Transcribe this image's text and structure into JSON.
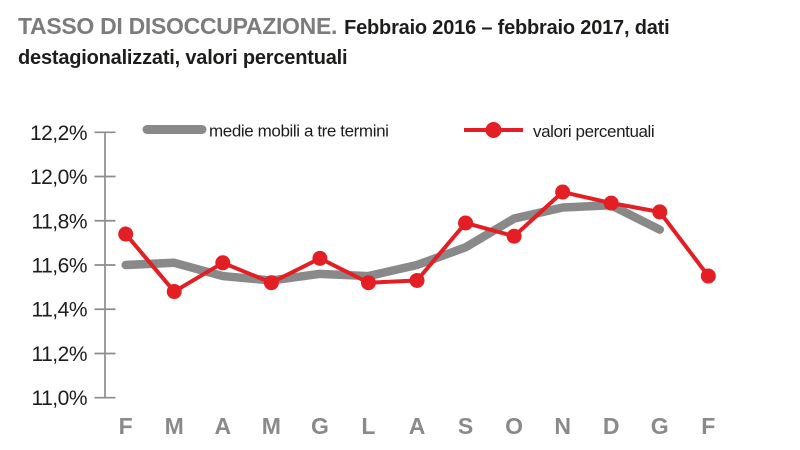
{
  "header": {
    "title_bold": "TASSO DI DISOCCUPAZIONE.",
    "title_rest": "Febbraio 2016 – febbraio 2017, dati destagionalizzati, valori percentuali"
  },
  "colors": {
    "gray_series": "#898989",
    "red_series": "#e31e24",
    "axis_gray": "#8c8c8c",
    "tick_label_color": "#1d1d1b",
    "month_label_gray": "#8a8a8a",
    "title_gray": "#7c7c7c",
    "title_black": "#1d1d1b"
  },
  "chart_data": {
    "type": "line",
    "title": "TASSO DI DISOCCUPAZIONE. Febbraio 2016 – febbraio 2017, dati destagionalizzati, valori percentuali",
    "categories": [
      "F",
      "M",
      "A",
      "M",
      "G",
      "L",
      "A",
      "S",
      "O",
      "N",
      "D",
      "G",
      "F"
    ],
    "series": [
      {
        "name": "medie mobili a tre termini",
        "color": "#898989",
        "marker": "none",
        "values": [
          11.6,
          11.61,
          11.55,
          11.53,
          11.56,
          11.55,
          11.6,
          11.68,
          11.81,
          11.86,
          11.87,
          11.76,
          null
        ]
      },
      {
        "name": "valori percentuali",
        "color": "#e31e24",
        "marker": "circle",
        "values": [
          11.74,
          11.48,
          11.61,
          11.52,
          11.63,
          11.52,
          11.53,
          11.79,
          11.73,
          11.93,
          11.88,
          11.84,
          11.55
        ]
      }
    ],
    "xlabel": "",
    "ylabel": "",
    "ylim": [
      11.0,
      12.2
    ],
    "ytick_step": 0.2,
    "yticks": [
      {
        "label": "12,2%",
        "value": 12.2
      },
      {
        "label": "12,0%",
        "value": 12.0
      },
      {
        "label": "11,8%",
        "value": 11.8
      },
      {
        "label": "11,6%",
        "value": 11.6
      },
      {
        "label": "11,4%",
        "value": 11.4
      },
      {
        "label": "11,2%",
        "value": 11.2
      },
      {
        "label": "11,0%",
        "value": 11.0
      }
    ],
    "grid": false,
    "legend_position": "top"
  }
}
